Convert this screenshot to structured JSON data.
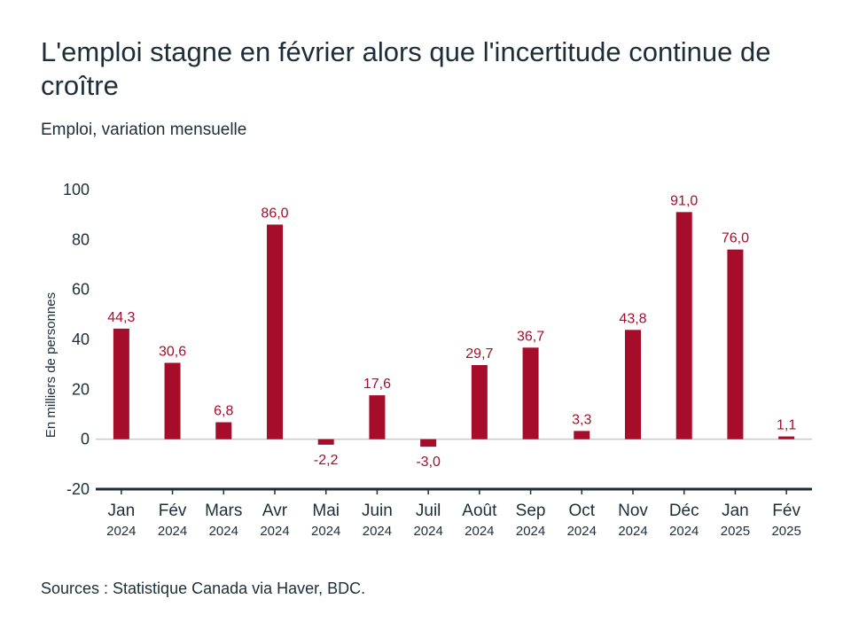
{
  "title": "L'emploi stagne en février alors que l'incertitude continue de croître",
  "subtitle": "Emploi, variation mensuelle",
  "source": "Sources : Statistique Canada via Haver, BDC.",
  "colors": {
    "bar": "#a50d2b",
    "axis": "#1d2d3a",
    "zero_line": "#c9c9c9"
  },
  "chart_data": {
    "type": "bar",
    "categories": [
      "Jan",
      "Fév",
      "Mars",
      "Avr",
      "Mai",
      "Juin",
      "Juil",
      "Août",
      "Sep",
      "Oct",
      "Nov",
      "Déc",
      "Jan",
      "Fév"
    ],
    "years": [
      "2024",
      "2024",
      "2024",
      "2024",
      "2024",
      "2024",
      "2024",
      "2024",
      "2024",
      "2024",
      "2024",
      "2024",
      "2025",
      "2025"
    ],
    "values": [
      44.3,
      30.6,
      6.8,
      86.0,
      -2.2,
      17.6,
      -3.0,
      29.7,
      36.7,
      3.3,
      43.8,
      91.0,
      76.0,
      1.1
    ],
    "value_labels": [
      "44,3",
      "30,6",
      "6,8",
      "86,0",
      "-2,2",
      "17,6",
      "-3,0",
      "29,7",
      "36,7",
      "3,3",
      "43,8",
      "91,0",
      "76,0",
      "1,1"
    ],
    "ylabel": "En milliers de personnes",
    "ylim": [
      -20,
      100
    ],
    "yticks": [
      100,
      80,
      60,
      40,
      20,
      0,
      -20
    ],
    "grid": false,
    "legend": "none"
  }
}
